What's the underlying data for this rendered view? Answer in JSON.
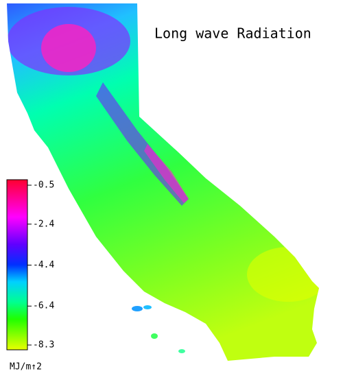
{
  "title": "Long wave Radiation",
  "colorbar": {
    "unit": "MJ/m↑2",
    "ticks": [
      -0.5,
      -2.4,
      -4.4,
      -6.4,
      -8.3
    ]
  }
}
